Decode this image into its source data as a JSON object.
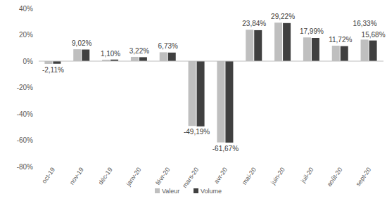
{
  "chart_data": {
    "type": "bar",
    "categories": [
      "oct-19",
      "nov-19",
      "déc-19",
      "janv-20",
      "févr-20",
      "mars-20",
      "avr-20",
      "mai-20",
      "juin-20",
      "juil-20",
      "août-20",
      "sept-20"
    ],
    "series": [
      {
        "name": "Valeur",
        "color": "#bfbfbf",
        "values": [
          -2.11,
          9.02,
          1.1,
          3.22,
          6.73,
          -49.19,
          -61.67,
          23.84,
          29.22,
          17.99,
          11.72,
          16.33
        ],
        "value_labels": [
          "-2,11%",
          "9,02%",
          "1,10%",
          "3,22%",
          "6,73%",
          "-49,19%",
          "-61,67%",
          "23,84%",
          "29,22%",
          "17,99%",
          "11,72%",
          "16,33%"
        ]
      },
      {
        "name": "Volume",
        "color": "#404040",
        "values": [
          -2.0,
          8.8,
          1.2,
          3.0,
          6.5,
          -49.5,
          -61.8,
          23.5,
          28.9,
          17.6,
          11.4,
          15.68
        ],
        "value_labels": [
          null,
          null,
          null,
          null,
          null,
          null,
          null,
          null,
          null,
          null,
          null,
          "15,68%"
        ]
      }
    ],
    "ylim": [
      -80,
      40
    ],
    "yticks": [
      {
        "value": 40,
        "label": "40%"
      },
      {
        "value": 20,
        "label": "20%"
      },
      {
        "value": 0,
        "label": "0%"
      },
      {
        "value": -20,
        "label": "-20%"
      },
      {
        "value": -40,
        "label": "-40%"
      },
      {
        "value": -60,
        "label": "-60%"
      },
      {
        "value": -80,
        "label": "-80%"
      }
    ],
    "grid": false,
    "legend": "bottom",
    "data_labels": true
  }
}
